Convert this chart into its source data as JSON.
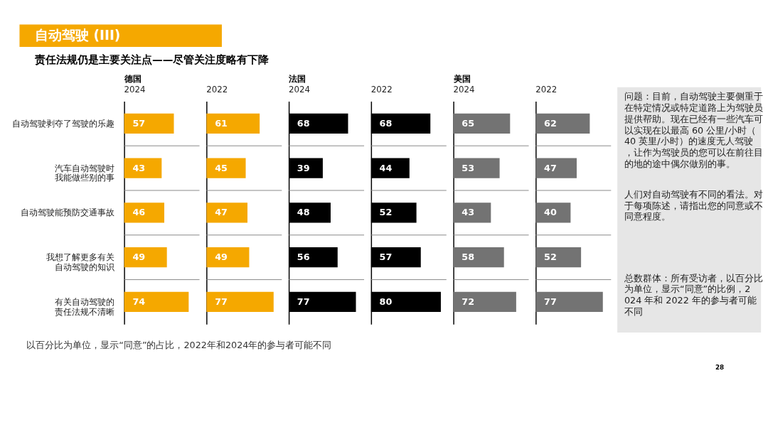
{
  "chart_data": [
    {
      "type": "other",
      "title": "自动驾驶 (III)",
      "subtitle": "责任法规仍是主要关注点——尽管关注度略有下降",
      "annotations": [
        "以百分比为单位，显示“同意”的占比，2022年和2024年的参与者可能不同",
        "28"
      ]
    },
    {
      "type": "bar",
      "orientation": "horizontal",
      "title": "德国",
      "subtitle": "2024",
      "categories": [
        "自动驾驶剥夺了驾驶的乐趣",
        "汽车自动驾驶时我能做些别的事",
        "自动驾驶能预防交通事故",
        "我想了解更多有关自动驾驶的知识",
        "有关自动驾驶的责任法规不清晰"
      ],
      "values": [
        57,
        43,
        46,
        49,
        74
      ],
      "color": "#f5a800",
      "data_labels": true,
      "grid": "y",
      "tick_labels": "y"
    },
    {
      "type": "bar",
      "orientation": "horizontal",
      "subtitle": "2022",
      "categories": [
        "自动驾驶剥夺了驾驶的乐趣",
        "汽车自动驾驶时我能做些别的事",
        "自动驾驶能预防交通事故",
        "我想了解更多有关自动驾驶的知识",
        "有关自动驾驶的责任法规不清晰"
      ],
      "values": [
        61,
        45,
        47,
        49,
        77
      ],
      "color": "#f5a800",
      "data_labels": true,
      "grid": "y",
      "tick_labels": false
    },
    {
      "type": "bar",
      "orientation": "horizontal",
      "title": "法国",
      "subtitle": "2024",
      "categories": [
        "自动驾驶剥夺了驾驶的乐趣",
        "汽车自动驾驶时我能做些别的事",
        "自动驾驶能预防交通事故",
        "我想了解更多有关自动驾驶的知识",
        "有关自动驾驶的责任法规不清晰"
      ],
      "values": [
        68,
        39,
        48,
        56,
        77
      ],
      "color": "#000000",
      "data_labels": true,
      "grid": "y",
      "tick_labels": false
    },
    {
      "type": "bar",
      "orientation": "horizontal",
      "subtitle": "2022",
      "categories": [
        "自动驾驶剥夺了驾驶的乐趣",
        "汽车自动驾驶时我能做些别的事",
        "自动驾驶能预防交通事故",
        "我想了解更多有关自动驾驶的知识",
        "有关自动驾驶的责任法规不清晰"
      ],
      "values": [
        68,
        44,
        52,
        57,
        80
      ],
      "color": "#000000",
      "data_labels": true,
      "grid": "y",
      "tick_labels": false
    },
    {
      "type": "bar",
      "orientation": "horizontal",
      "title": "美国",
      "subtitle": "2024",
      "categories": [
        "自动驾驶剥夺了驾驶的乐趣",
        "汽车自动驾驶时我能做些别的事",
        "自动驾驶能预防交通事故",
        "我想了解更多有关自动驾驶的知识",
        "有关自动驾驶的责任法规不清晰"
      ],
      "values": [
        65,
        53,
        43,
        58,
        72
      ],
      "color": "#737373",
      "data_labels": true,
      "grid": "y",
      "tick_labels": false
    },
    {
      "type": "bar",
      "orientation": "horizontal",
      "subtitle": "2022",
      "categories": [
        "自动驾驶剥夺了驾驶的乐趣",
        "汽车自动驾驶时我能做些别的事",
        "自动驾驶能预防交通事故",
        "我想了解更多有关自动驾驶的知识",
        "有关自动驾驶的责任法规不清晰"
      ],
      "values": [
        62,
        47,
        40,
        52,
        77
      ],
      "color": "#737373",
      "data_labels": true,
      "grid": "y",
      "tick_labels": false
    },
    {
      "type": "other",
      "annotations": [
        "问题：目前，自动驾驶主要侧重于在特定情况或特定道路上为驾驶员提供帮助。现在已经有一些汽车可以实现在以最高 60 公里/小时（40 英里/小时）的速度无人驾驶，让作为驾驶员的您可以在前往目的地的途中偶尔做别的事。",
        "人们对自动驾驶有不同的看法。对于每项陈述，请指出您的同意或不同意程度。",
        "总数群体：所有受访者，以百分比为单位，显示“同意”的比例，2024 年和 2022 年的参与者可能不同"
      ]
    }
  ]
}
